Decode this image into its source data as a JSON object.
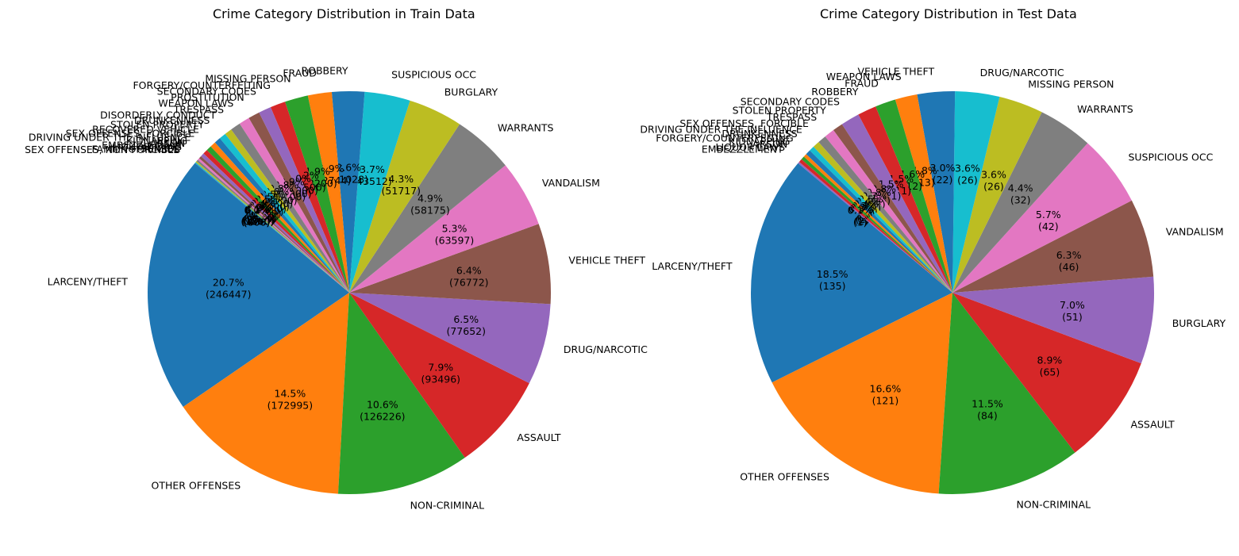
{
  "chart_data": [
    {
      "type": "pie",
      "title": "Crime Category Distribution in Train Data",
      "autopct_format": "percent-and-count",
      "slices": [
        {
          "label": "LARCENY/THEFT",
          "value": 246447,
          "color": "#1f77b4"
        },
        {
          "label": "OTHER OFFENSES",
          "value": 172995,
          "color": "#ff7f0e"
        },
        {
          "label": "NON-CRIMINAL",
          "value": 126226,
          "color": "#2ca02c"
        },
        {
          "label": "ASSAULT",
          "value": 93496,
          "color": "#d62728"
        },
        {
          "label": "DRUG/NARCOTIC",
          "value": 77652,
          "color": "#9467bd"
        },
        {
          "label": "VEHICLE THEFT",
          "value": 76772,
          "color": "#8c564b"
        },
        {
          "label": "VANDALISM",
          "value": 63597,
          "color": "#e377c2"
        },
        {
          "label": "WARRANTS",
          "value": 58175,
          "color": "#7f7f7f"
        },
        {
          "label": "BURGLARY",
          "value": 51717,
          "color": "#bcbd22"
        },
        {
          "label": "SUSPICIOUS OCC",
          "value": 43512,
          "color": "#17becf"
        },
        {
          "label": "ROBBERY",
          "value": 31028,
          "color": "#1f77b4"
        },
        {
          "label": "FRAUD",
          "value": 22744,
          "color": "#ff7f0e"
        },
        {
          "label": "MISSING PERSON",
          "value": 22200,
          "color": "#2ca02c"
        },
        {
          "label": "FORGERY/COUNTERFEITING",
          "value": 14500,
          "color": "#d62728"
        },
        {
          "label": "SECONDARY CODES",
          "value": 12000,
          "color": "#9467bd"
        },
        {
          "label": "PROSTITUTION",
          "value": 10900,
          "color": "#8c564b"
        },
        {
          "label": "WEAPON LAWS",
          "value": 10100,
          "color": "#e377c2"
        },
        {
          "label": "TRESPASS",
          "value": 9700,
          "color": "#7f7f7f"
        },
        {
          "label": "DISORDERLY CONDUCT",
          "value": 7000,
          "color": "#bcbd22"
        },
        {
          "label": "DRUNKENNESS",
          "value": 6500,
          "color": "#17becf"
        },
        {
          "label": "STOLEN PROPERTY",
          "value": 6000,
          "color": "#1f77b4"
        },
        {
          "label": "RECOVERED VEHICLE",
          "value": 5500,
          "color": "#ff7f0e"
        },
        {
          "label": "SEX OFFENSES, FORCIBLE",
          "value": 5000,
          "color": "#2ca02c"
        },
        {
          "label": "DRIVING UNDER THE INFLUENCE",
          "value": 4500,
          "color": "#d62728"
        },
        {
          "label": "KIDNAPPING",
          "value": 3500,
          "color": "#9467bd"
        },
        {
          "label": "ARSON",
          "value": 2500,
          "color": "#8c564b"
        },
        {
          "label": "EMBEZZLEMENT",
          "value": 2000,
          "color": "#e377c2"
        },
        {
          "label": "LIQUOR LAWS",
          "value": 1800,
          "color": "#7f7f7f"
        },
        {
          "label": "SUICIDE",
          "value": 1200,
          "color": "#bcbd22"
        },
        {
          "label": "FAMILY OFFENSES",
          "value": 800,
          "color": "#17becf"
        },
        {
          "label": "SEX OFFENSES, NON FORCIBLE",
          "value": 400,
          "color": "#1f77b4"
        }
      ]
    },
    {
      "type": "pie",
      "title": "Crime Category Distribution in Test Data",
      "autopct_format": "percent-and-count",
      "slices": [
        {
          "label": "LARCENY/THEFT",
          "value": 135,
          "color": "#1f77b4"
        },
        {
          "label": "OTHER OFFENSES",
          "value": 121,
          "color": "#ff7f0e"
        },
        {
          "label": "NON-CRIMINAL",
          "value": 84,
          "color": "#2ca02c"
        },
        {
          "label": "ASSAULT",
          "value": 65,
          "color": "#d62728"
        },
        {
          "label": "BURGLARY",
          "value": 51,
          "color": "#9467bd"
        },
        {
          "label": "VANDALISM",
          "value": 46,
          "color": "#8c564b"
        },
        {
          "label": "SUSPICIOUS OCC",
          "value": 42,
          "color": "#e377c2"
        },
        {
          "label": "WARRANTS",
          "value": 32,
          "color": "#7f7f7f"
        },
        {
          "label": "MISSING PERSON",
          "value": 26,
          "color": "#bcbd22"
        },
        {
          "label": "DRUG/NARCOTIC",
          "value": 26,
          "color": "#17becf"
        },
        {
          "label": "VEHICLE THEFT",
          "value": 22,
          "color": "#1f77b4"
        },
        {
          "label": "WEAPON LAWS",
          "value": 13,
          "color": "#ff7f0e"
        },
        {
          "label": "FRAUD",
          "value": 12,
          "color": "#2ca02c"
        },
        {
          "label": "ROBBERY",
          "value": 11,
          "color": "#d62728"
        },
        {
          "label": "SECONDARY CODES",
          "value": 11,
          "color": "#9467bd"
        },
        {
          "label": "STOLEN PROPERTY",
          "value": 6,
          "color": "#8c564b"
        },
        {
          "label": "TRESPASS",
          "value": 6,
          "color": "#e377c2"
        },
        {
          "label": "SEX OFFENSES, FORCIBLE",
          "value": 5,
          "color": "#7f7f7f"
        },
        {
          "label": "DRIVING UNDER THE INFLUENCE",
          "value": 4,
          "color": "#bcbd22"
        },
        {
          "label": "DRUNKENNESS",
          "value": 3,
          "color": "#17becf"
        },
        {
          "label": "FORGERY/COUNTERFEITING",
          "value": 3,
          "color": "#1f77b4"
        },
        {
          "label": "KIDNAPPING",
          "value": 2,
          "color": "#ff7f0e"
        },
        {
          "label": "ARSON",
          "value": 2,
          "color": "#2ca02c"
        },
        {
          "label": "LIQUOR LAWS",
          "value": 2,
          "color": "#d62728"
        },
        {
          "label": "EMBEZZLEMENT",
          "value": 1,
          "color": "#9467bd"
        }
      ]
    }
  ]
}
